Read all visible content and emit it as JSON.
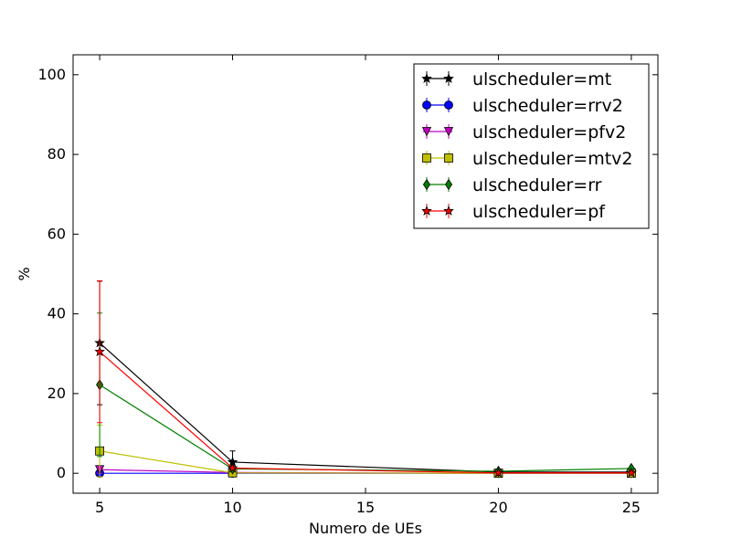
{
  "chart_data": {
    "type": "line",
    "title": "",
    "xlabel": "Numero de UEs",
    "ylabel": "%",
    "xlim": [
      4,
      26
    ],
    "ylim": [
      -5,
      105
    ],
    "xticks": [
      5,
      10,
      15,
      20,
      25
    ],
    "yticks": [
      0,
      20,
      40,
      60,
      80,
      100
    ],
    "xtick_labels": [
      "5",
      "10",
      "15",
      "20",
      "25"
    ],
    "ytick_labels": [
      "0",
      "20",
      "40",
      "60",
      "80",
      "100"
    ],
    "grid": false,
    "legend": {
      "position": "top-right"
    },
    "series": [
      {
        "name": "ulscheduler=mt",
        "color": "#000000",
        "marker": "star",
        "x": [
          5,
          10,
          20,
          25
        ],
        "y": [
          32.7,
          2.8,
          0.3,
          0.3
        ],
        "err": [
          15.5,
          2.8,
          0.0,
          0.0
        ]
      },
      {
        "name": "ulscheduler=rrv2",
        "color": "#0000ff",
        "marker": "circle",
        "x": [
          5,
          10,
          20,
          25
        ],
        "y": [
          0.0,
          0.0,
          0.0,
          0.0
        ],
        "err": [
          0.0,
          0.0,
          0.0,
          0.0
        ]
      },
      {
        "name": "ulscheduler=pfv2",
        "color": "#bf00bf",
        "marker": "triangle-down",
        "x": [
          5,
          10,
          20,
          25
        ],
        "y": [
          0.9,
          0.2,
          0.0,
          0.0
        ],
        "err": [
          0.9,
          0.0,
          0.0,
          0.0
        ]
      },
      {
        "name": "ulscheduler=mtv2",
        "color": "#bfbf00",
        "marker": "square",
        "x": [
          5,
          10,
          20,
          25
        ],
        "y": [
          5.6,
          0.1,
          0.0,
          0.0
        ],
        "err": [
          6.5,
          0.0,
          0.0,
          0.0
        ]
      },
      {
        "name": "ulscheduler=rr",
        "color": "#008000",
        "marker": "diamond",
        "x": [
          5,
          10,
          20,
          25
        ],
        "y": [
          22.2,
          1.1,
          0.5,
          1.2
        ],
        "err": [
          18.0,
          0.0,
          0.0,
          0.0
        ]
      },
      {
        "name": "ulscheduler=pf",
        "color": "#ff0000",
        "marker": "star",
        "x": [
          5,
          10,
          20,
          25
        ],
        "y": [
          30.5,
          1.3,
          0.1,
          0.1
        ],
        "err": [
          17.8,
          0.0,
          0.0,
          0.0
        ]
      }
    ]
  }
}
